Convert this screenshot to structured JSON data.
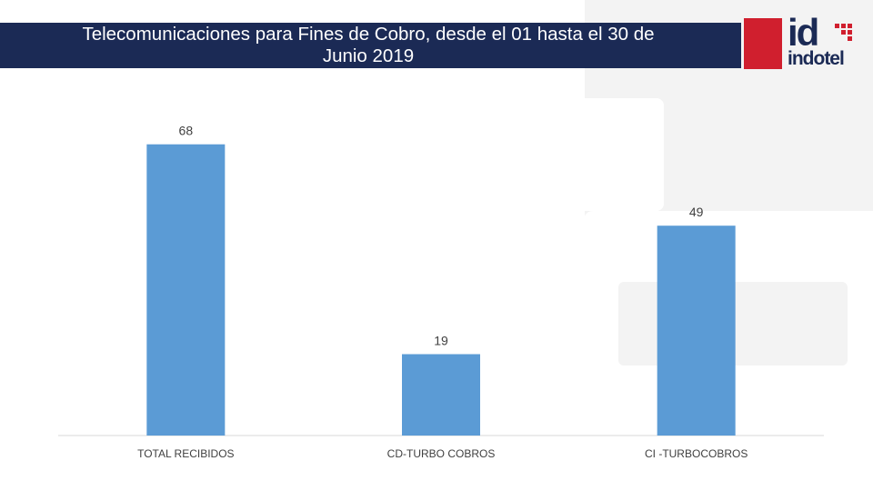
{
  "header": {
    "title_line1": "Telecomunicaciones para Fines de Cobro, desde el 01 hasta el 30 de",
    "title_line2": "Junio 2019"
  },
  "logo": {
    "mark": "id",
    "word": "indotel",
    "colors": {
      "red": "#d01f2e",
      "navy": "#1b2a55"
    }
  },
  "chart_data": {
    "type": "bar",
    "categories": [
      "TOTAL RECIBIDOS",
      "CD-TURBO COBROS",
      "CI -TURBOCOBROS"
    ],
    "values": [
      68,
      19,
      49
    ],
    "title": "",
    "xlabel": "",
    "ylabel": "",
    "ylim": [
      0,
      75
    ],
    "grid": false,
    "bar_color": "#5b9bd5"
  }
}
